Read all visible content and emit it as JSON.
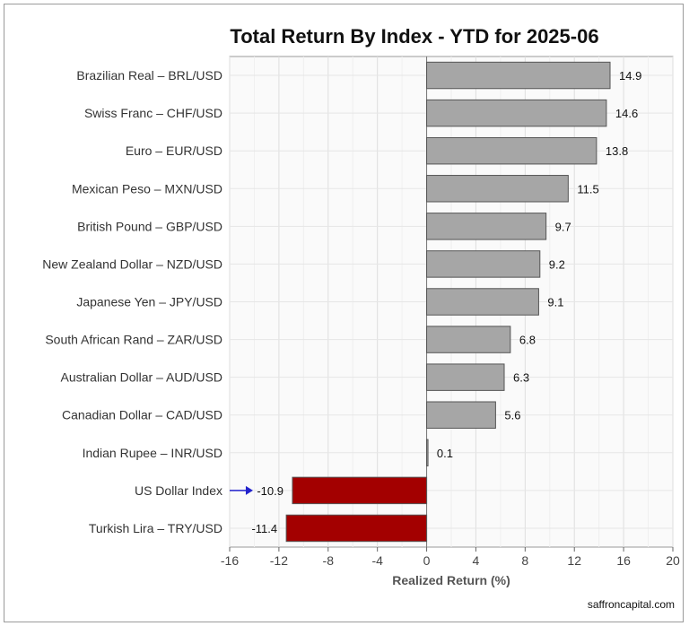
{
  "chart_data": {
    "type": "bar",
    "orientation": "horizontal",
    "title": "Total Return By Index - YTD for 2025-06",
    "xlabel": "Realized Return (%)",
    "ylabel": "",
    "xlim": [
      -16,
      20
    ],
    "xticks": [
      -16,
      -12,
      -8,
      -4,
      0,
      4,
      8,
      12,
      16,
      20
    ],
    "grid": true,
    "categories": [
      "Brazilian Real – BRL/USD",
      "Swiss Franc – CHF/USD",
      "Euro – EUR/USD",
      "Mexican Peso – MXN/USD",
      "British Pound – GBP/USD",
      "New Zealand Dollar – NZD/USD",
      "Japanese Yen – JPY/USD",
      "South African Rand – ZAR/USD",
      "Australian Dollar – AUD/USD",
      "Canadian Dollar – CAD/USD",
      "Indian Rupee – INR/USD",
      "US Dollar Index",
      "Turkish Lira – TRY/USD"
    ],
    "values": [
      14.9,
      14.6,
      13.8,
      11.5,
      9.7,
      9.2,
      9.1,
      6.8,
      6.3,
      5.6,
      0.1,
      -10.9,
      -11.4
    ],
    "value_labels": [
      "14.9",
      "14.6",
      "13.8",
      "11.5",
      "9.7",
      "9.2",
      "9.1",
      "6.8",
      "6.3",
      "5.6",
      "0.1",
      "-10.9",
      "-11.4"
    ],
    "highlight_category": "US Dollar Index",
    "colors": {
      "positive": "#a6a6a6",
      "negative": "#a30000",
      "bar_border": "#555555",
      "arrow": "#2222cc"
    }
  },
  "footer": {
    "source": "saffroncapital.com"
  }
}
